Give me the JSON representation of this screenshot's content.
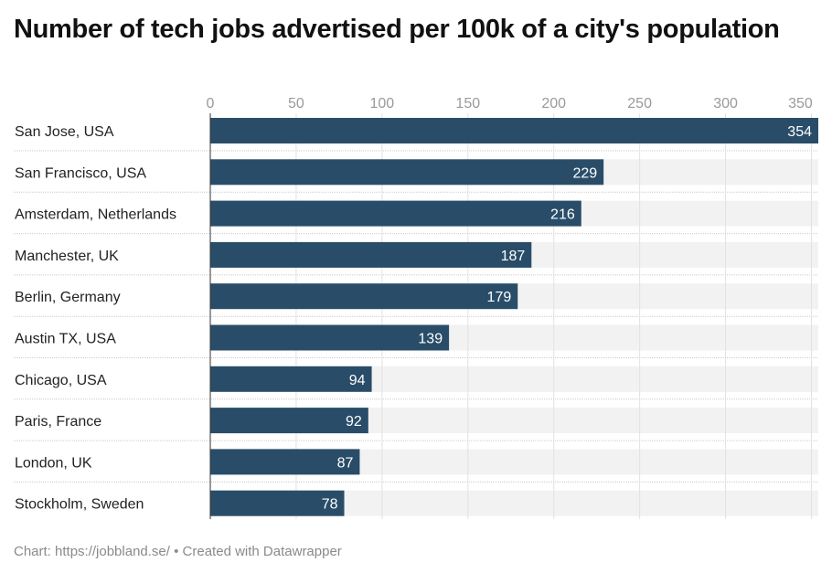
{
  "chart_data": {
    "type": "bar",
    "orientation": "horizontal",
    "title": "Number of tech jobs advertised per 100k of a city's population",
    "categories": [
      "San Jose, USA",
      "San Francisco, USA",
      "Amsterdam, Netherlands",
      "Manchester, UK",
      "Berlin, Germany",
      "Austin TX, USA",
      "Chicago, USA",
      "Paris, France",
      "London, UK",
      "Stockholm, Sweden"
    ],
    "values": [
      354,
      229,
      216,
      187,
      179,
      139,
      94,
      92,
      87,
      78
    ],
    "xticks": [
      0,
      50,
      100,
      150,
      200,
      250,
      300,
      350
    ],
    "xlim": [
      0,
      354
    ],
    "grid": true,
    "xlabel": "",
    "ylabel": "",
    "bar_color": "#294d69",
    "track_color": "#f2f2f2"
  },
  "footer": {
    "source": "Chart: https://jobbland.se/",
    "separator": "•",
    "credit": "Created with Datawrapper"
  }
}
